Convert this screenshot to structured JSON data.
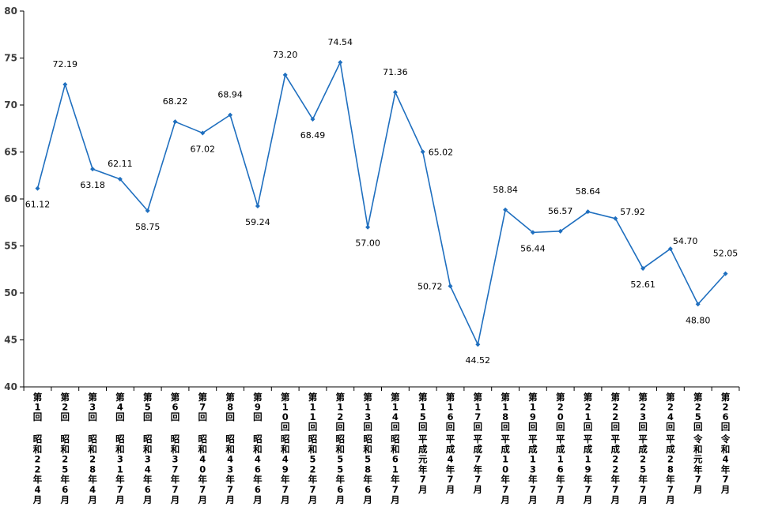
{
  "chart_data": {
    "type": "line",
    "title": "",
    "xlabel": "",
    "ylabel": "",
    "ylim": [
      40,
      80
    ],
    "yticks": [
      40,
      45,
      50,
      55,
      60,
      65,
      70,
      75,
      80
    ],
    "grid": false,
    "legend": "none",
    "series_color": "#1f6fbf",
    "categories": [
      {
        "round": "第1回",
        "era": "昭和22年4月"
      },
      {
        "round": "第2回",
        "era": "昭和25年6月"
      },
      {
        "round": "第3回",
        "era": "昭和28年4月"
      },
      {
        "round": "第4回",
        "era": "昭和31年7月"
      },
      {
        "round": "第5回",
        "era": "昭和34年6月"
      },
      {
        "round": "第6回",
        "era": "昭和37年7月"
      },
      {
        "round": "第7回",
        "era": "昭和40年7月"
      },
      {
        "round": "第8回",
        "era": "昭和43年7月"
      },
      {
        "round": "第9回",
        "era": "昭和46年6月"
      },
      {
        "round": "第10回",
        "era": "昭和49年7月"
      },
      {
        "round": "第11回",
        "era": "昭和52年7月"
      },
      {
        "round": "第12回",
        "era": "昭和55年6月"
      },
      {
        "round": "第13回",
        "era": "昭和58年6月"
      },
      {
        "round": "第14回",
        "era": "昭和61年7月"
      },
      {
        "round": "第15回",
        "era": "平成元年7月"
      },
      {
        "round": "第16回",
        "era": "平成4年7月"
      },
      {
        "round": "第17回",
        "era": "平成7年7月"
      },
      {
        "round": "第18回",
        "era": "平成10年7月"
      },
      {
        "round": "第19回",
        "era": "平成13年7月"
      },
      {
        "round": "第20回",
        "era": "平成16年7月"
      },
      {
        "round": "第21回",
        "era": "平成19年7月"
      },
      {
        "round": "第22回",
        "era": "平成22年7月"
      },
      {
        "round": "第23回",
        "era": "平成25年7月"
      },
      {
        "round": "第24回",
        "era": "平成28年7月"
      },
      {
        "round": "第25回",
        "era": "令和元年7月"
      },
      {
        "round": "第26回",
        "era": "令和4年7月"
      }
    ],
    "series": [
      {
        "values": [
          61.12,
          72.19,
          63.18,
          62.11,
          58.75,
          68.22,
          67.02,
          68.94,
          59.24,
          73.2,
          68.49,
          74.54,
          57.0,
          71.36,
          65.02,
          50.72,
          44.52,
          58.84,
          56.44,
          56.57,
          58.64,
          57.92,
          52.61,
          54.7,
          48.8,
          52.05
        ],
        "labels": [
          "61.12",
          "72.19",
          "63.18",
          "62.11",
          "58.75",
          "68.22",
          "67.02",
          "68.94",
          "59.24",
          "73.20",
          "68.49",
          "74.54",
          "57.00",
          "71.36",
          "65.02",
          "50.72",
          "44.52",
          "58.84",
          "56.44",
          "56.57",
          "58.64",
          "57.92",
          "52.61",
          "54.70",
          "48.80",
          "52.05"
        ]
      }
    ]
  }
}
